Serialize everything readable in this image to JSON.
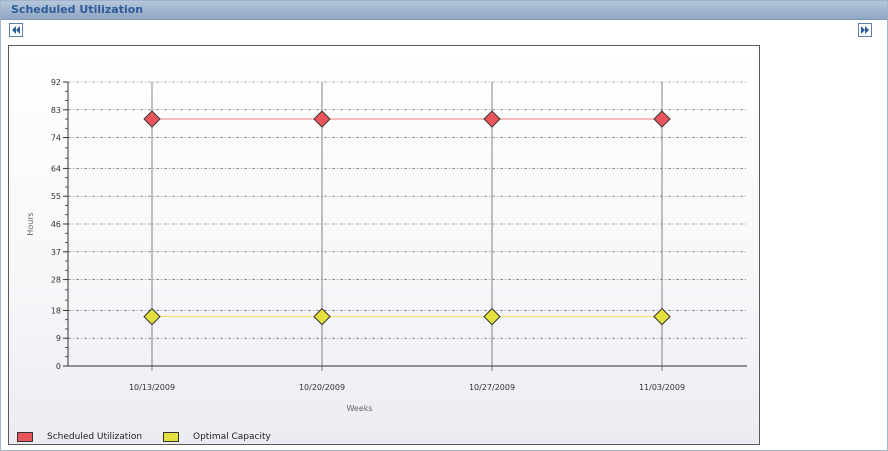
{
  "panel": {
    "title": "Scheduled Utilization"
  },
  "nav": {
    "prev_icon": "double-left-arrow-icon",
    "next_icon": "double-right-arrow-icon"
  },
  "chart_data": {
    "type": "line",
    "categories": [
      "10/13/2009",
      "10/20/2009",
      "10/27/2009",
      "11/03/2009"
    ],
    "series": [
      {
        "name": "Scheduled Utilization",
        "values": [
          80,
          80,
          80,
          80
        ],
        "color": "#e8555a",
        "line_color": "#ee7b7f"
      },
      {
        "name": "Optimal Capacity",
        "values": [
          16,
          16,
          16,
          16
        ],
        "color": "#e3df3d",
        "line_color": "#e7e067"
      }
    ],
    "xlabel": "Weeks",
    "ylabel": "Hours",
    "ylim": [
      0,
      92
    ],
    "yticks": [
      0,
      9,
      18,
      28,
      37,
      46,
      55,
      64,
      74,
      83,
      92
    ],
    "grid": true,
    "legend_position": "bottom-left",
    "marker": "diamond"
  }
}
